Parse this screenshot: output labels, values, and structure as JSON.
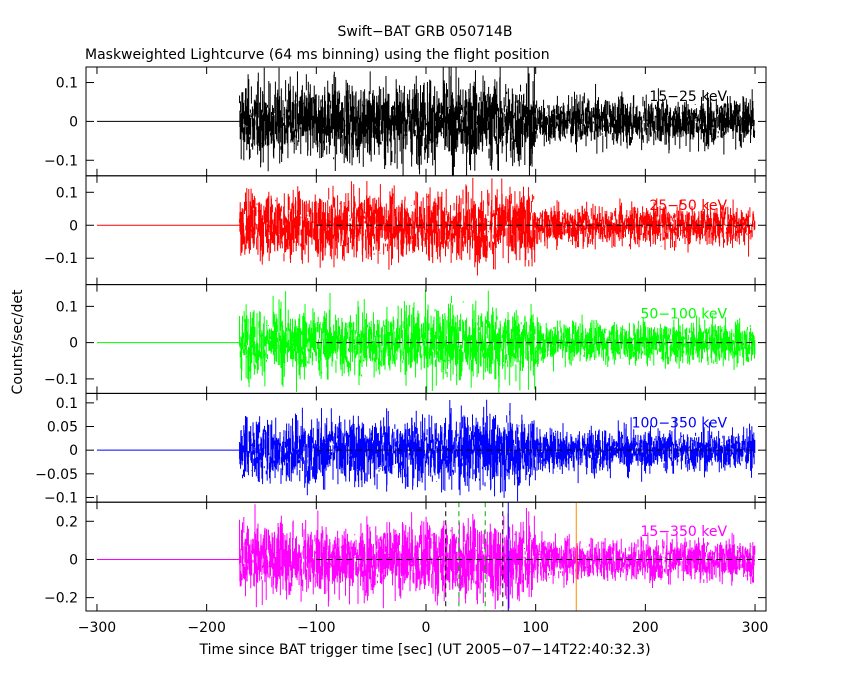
{
  "title": "Swift−BAT GRB 050714B",
  "subtitle": "Maskweighted Lightcurve (64 ms binning) using the flight position",
  "ylabel": "Counts/sec/det",
  "xlabel": "Time since BAT trigger time [sec] (UT 2005−07−14T22:40:32.3)",
  "chart_data": {
    "type": "line",
    "title": "Swift−BAT GRB 050714B",
    "subtitle": "Maskweighted Lightcurve (64 ms binning) using the flight position",
    "xlabel": "Time since BAT trigger time [sec] (UT 2005−07−14T22:40:32.3)",
    "ylabel": "Counts/sec/det",
    "xlim": [
      -310,
      310
    ],
    "x_ticks": [
      -300,
      -200,
      -100,
      0,
      100,
      200,
      300
    ],
    "x_tick_labels": [
      "−300",
      "−200",
      "−100",
      "0",
      "100",
      "200",
      "300"
    ],
    "data_start": -170,
    "data_end": 300,
    "zero_line_start": -300,
    "dashed_zero_start": -100,
    "panels": [
      {
        "name": "15−25 keV",
        "color": "#000000",
        "ylim": [
          -0.14,
          0.14
        ],
        "y_ticks": [
          -0.1,
          0,
          0.1
        ],
        "y_tick_labels": [
          "−0.1",
          "0",
          "0.1"
        ],
        "noise_before_100s": 0.05,
        "noise_after_100s": 0.03,
        "dashed_zero": false
      },
      {
        "name": "25−50 keV",
        "color": "#ff0000",
        "ylim": [
          -0.18,
          0.15
        ],
        "y_ticks": [
          -0.1,
          0,
          0.1
        ],
        "y_tick_labels": [
          "−0.1",
          "0",
          "0.1"
        ],
        "noise_before_100s": 0.05,
        "noise_after_100s": 0.03,
        "dashed_zero": true
      },
      {
        "name": "50−100 keV",
        "color": "#00ff00",
        "ylim": [
          -0.14,
          0.16
        ],
        "y_ticks": [
          -0.1,
          0,
          0.1
        ],
        "y_tick_labels": [
          "−0.1",
          "0",
          "0.1"
        ],
        "noise_before_100s": 0.045,
        "noise_after_100s": 0.028,
        "dashed_zero": true
      },
      {
        "name": "100−350 keV",
        "color": "#0000ff",
        "ylim": [
          -0.11,
          0.12
        ],
        "y_ticks": [
          -0.1,
          -0.05,
          0,
          0.05,
          0.1
        ],
        "y_tick_labels": [
          "−0.1",
          "−0.05",
          "0",
          "0.05",
          "0.1"
        ],
        "noise_before_100s": 0.035,
        "noise_after_100s": 0.022,
        "dashed_zero": true
      },
      {
        "name": "15−350 keV",
        "color": "#ff00ff",
        "ylim": [
          -0.27,
          0.3
        ],
        "y_ticks": [
          -0.2,
          0,
          0.2
        ],
        "y_tick_labels": [
          "−0.2",
          "0",
          "0.2"
        ],
        "noise_before_100s": 0.09,
        "noise_after_100s": 0.055,
        "dashed_zero": true,
        "markers": [
          {
            "x": 18,
            "color": "#000000",
            "style": "dash"
          },
          {
            "x": 30,
            "color": "#00aa00",
            "style": "dash"
          },
          {
            "x": 54,
            "color": "#00aa00",
            "style": "dash"
          },
          {
            "x": 70,
            "color": "#000000",
            "style": "dash"
          },
          {
            "x": 75,
            "color": "#0000ff",
            "style": "solid"
          },
          {
            "x": 137,
            "color": "#ff8800",
            "style": "solid"
          }
        ]
      }
    ]
  }
}
